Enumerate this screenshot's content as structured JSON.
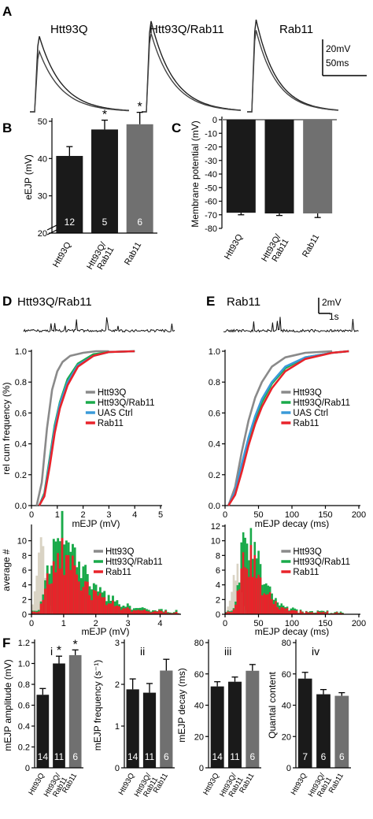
{
  "panel_labels": {
    "a": "A",
    "b": "B",
    "c": "C",
    "d": "D",
    "e": "E",
    "f": "F"
  },
  "scalebars": {
    "voltage": "20mV",
    "time": "50ms",
    "trace_voltage": "2mV",
    "trace_time": "1s"
  },
  "colors": {
    "htt93q": "#8a8a8a",
    "htt93q_rab11": "#1aaa4a",
    "uas_ctrl": "#3a9ad9",
    "rab11": "#e8232a",
    "bar_dark": "#1a1a1a",
    "bar_gray": "#707070",
    "hist_light": "#d9d3c4"
  },
  "chart_data": [
    {
      "id": "A",
      "type": "line",
      "title": "Htt93Q",
      "note": "evoked EJP traces",
      "series_count": 2
    },
    {
      "id": "A2",
      "type": "line",
      "title": "Htt93Q/Rab11",
      "series_count": 2
    },
    {
      "id": "A3",
      "type": "line",
      "title": "Rab11",
      "series_count": 2
    },
    {
      "id": "B",
      "type": "bar",
      "ylabel": "eEJP (mV)",
      "categories": [
        "Htt93Q",
        "Htt93Q/Rab11",
        "Rab11"
      ],
      "values": [
        40.7,
        47.8,
        49.2
      ],
      "errors": [
        2.5,
        2.5,
        3.2
      ],
      "n": [
        "12",
        "5",
        "6"
      ],
      "sig": [
        "",
        "*",
        "*"
      ],
      "ylim": [
        20,
        50
      ],
      "yticks": [
        "20",
        "30",
        "40",
        "50"
      ],
      "axis_break": true
    },
    {
      "id": "C",
      "type": "bar",
      "ylabel": "Membrane potential (mV)",
      "categories": [
        "Htt93Q",
        "Htt93Q/Rab11",
        "Rab11"
      ],
      "values": [
        -68.5,
        -69,
        -69
      ],
      "errors": [
        1.5,
        1.5,
        3
      ],
      "ylim": [
        -80,
        0
      ],
      "yticks": [
        "0",
        "-10",
        "-20",
        "-30",
        "-40",
        "-50",
        "-60",
        "-70",
        "-80"
      ]
    },
    {
      "id": "D_cdf",
      "type": "line",
      "title": "Htt93Q/Rab11",
      "xlabel": "mEJP  (mV)",
      "ylabel": "rel cum frequency (%)",
      "xlim": [
        0,
        5
      ],
      "ylim": [
        0,
        1
      ],
      "xticks": [
        "0",
        "1",
        "2",
        "3",
        "4",
        "5"
      ],
      "yticks": [
        "0.0",
        "0.2",
        "0.4",
        "0.6",
        "0.8",
        "1.0"
      ],
      "legend": [
        "Htt93Q",
        "Htt93Q/Rab11",
        "UAS Ctrl",
        "Rab11"
      ],
      "series": [
        {
          "name": "Htt93Q",
          "x": [
            0.2,
            0.4,
            0.6,
            0.8,
            1.0,
            1.2,
            1.5,
            2.0,
            2.5,
            3.0
          ],
          "y": [
            0.0,
            0.15,
            0.5,
            0.75,
            0.87,
            0.93,
            0.97,
            0.99,
            1.0,
            1.0
          ]
        },
        {
          "name": "Htt93Q/Rab11",
          "x": [
            0.3,
            0.5,
            0.7,
            0.9,
            1.1,
            1.4,
            1.8,
            2.4,
            3.0,
            4.0
          ],
          "y": [
            0.0,
            0.08,
            0.3,
            0.52,
            0.67,
            0.82,
            0.92,
            0.98,
            0.995,
            1.0
          ]
        },
        {
          "name": "UAS Ctrl",
          "x": [
            0.3,
            0.5,
            0.7,
            0.9,
            1.1,
            1.4,
            1.8,
            2.4,
            3.0,
            4.0
          ],
          "y": [
            0.0,
            0.07,
            0.28,
            0.5,
            0.66,
            0.8,
            0.91,
            0.97,
            0.995,
            1.0
          ]
        },
        {
          "name": "Rab11",
          "x": [
            0.3,
            0.5,
            0.7,
            0.9,
            1.1,
            1.4,
            1.8,
            2.4,
            3.0,
            4.0
          ],
          "y": [
            0.0,
            0.06,
            0.25,
            0.47,
            0.63,
            0.78,
            0.9,
            0.97,
            0.995,
            1.0
          ]
        }
      ]
    },
    {
      "id": "E_cdf",
      "type": "line",
      "title": "Rab11",
      "xlabel": "mEJP decay (ms)",
      "xlim": [
        0,
        200
      ],
      "ylim": [
        0,
        1
      ],
      "xticks": [
        "0",
        "50",
        "100",
        "150",
        "200"
      ],
      "yticks": [
        "0.0",
        "0.2",
        "0.4",
        "0.6",
        "0.8",
        "1.0"
      ],
      "legend": [
        "Htt93Q",
        "Htt93Q/Rab11",
        "UAS Ctrl",
        "Rab11"
      ],
      "series": [
        {
          "name": "Htt93Q",
          "x": [
            5,
            15,
            25,
            35,
            45,
            55,
            70,
            90,
            120,
            160
          ],
          "y": [
            0.0,
            0.12,
            0.35,
            0.55,
            0.7,
            0.8,
            0.9,
            0.96,
            0.99,
            1.0
          ]
        },
        {
          "name": "Htt93Q/Rab11",
          "x": [
            5,
            15,
            25,
            35,
            45,
            55,
            70,
            90,
            120,
            160,
            185
          ],
          "y": [
            0.0,
            0.08,
            0.25,
            0.42,
            0.56,
            0.67,
            0.79,
            0.89,
            0.96,
            0.99,
            1.0
          ]
        },
        {
          "name": "UAS Ctrl",
          "x": [
            5,
            15,
            25,
            35,
            45,
            55,
            70,
            90,
            120,
            160,
            185
          ],
          "y": [
            0.0,
            0.09,
            0.27,
            0.44,
            0.58,
            0.69,
            0.8,
            0.9,
            0.96,
            0.99,
            1.0
          ]
        },
        {
          "name": "Rab11",
          "x": [
            5,
            15,
            25,
            35,
            45,
            55,
            70,
            90,
            120,
            160,
            185
          ],
          "y": [
            0.0,
            0.07,
            0.22,
            0.39,
            0.53,
            0.64,
            0.76,
            0.87,
            0.95,
            0.99,
            1.0
          ]
        }
      ]
    },
    {
      "id": "D_hist",
      "type": "bar",
      "xlabel": "mEJP  (mV)",
      "ylabel": "average #",
      "xlim": [
        0,
        4.6
      ],
      "ylim": [
        0,
        12
      ],
      "xticks": [
        "0",
        "1",
        "2",
        "3",
        "4"
      ],
      "yticks": [
        "0",
        "2",
        "4",
        "6",
        "8",
        "10"
      ],
      "legend": [
        "Htt93Q",
        "Htt93Q/Rab11",
        "Rab11"
      ]
    },
    {
      "id": "E_hist",
      "type": "bar",
      "xlabel": "mEJP decay (ms)",
      "xlim": [
        0,
        200
      ],
      "ylim": [
        0,
        12
      ],
      "xticks": [
        "0",
        "50",
        "100",
        "150",
        "200"
      ],
      "yticks": [
        "0",
        "2",
        "4",
        "6",
        "8",
        "10",
        "12"
      ],
      "legend": [
        "Htt93Q",
        "Htt93Q/Rab11",
        "Rab11"
      ]
    },
    {
      "id": "Fi",
      "type": "bar",
      "roman": "i",
      "ylabel": "mEJP amplitude (mV)",
      "categories": [
        "Htt93Q",
        "Htt93Q/Rab11",
        "Rab11"
      ],
      "values": [
        0.7,
        1.0,
        1.08
      ],
      "errors": [
        0.06,
        0.07,
        0.05
      ],
      "n": [
        "14",
        "11",
        "6"
      ],
      "sig": [
        "",
        "*",
        "*"
      ],
      "ylim": [
        0,
        1.2
      ],
      "yticks": [
        "0",
        "0.2",
        "0.4",
        "0.6",
        "0.8",
        "1.0",
        "1.2"
      ]
    },
    {
      "id": "Fii",
      "type": "bar",
      "roman": "ii",
      "ylabel": "mEJP frequency (s⁻¹)",
      "categories": [
        "Htt93Q",
        "Htt93Q/Rab11",
        "Rab11"
      ],
      "values": [
        1.88,
        1.8,
        2.33
      ],
      "errors": [
        0.25,
        0.22,
        0.27
      ],
      "n": [
        "14",
        "11",
        "6"
      ],
      "sig": [
        "",
        "",
        ""
      ],
      "ylim": [
        0,
        3
      ],
      "yticks": [
        "0",
        "1",
        "2",
        "3"
      ]
    },
    {
      "id": "Fiii",
      "type": "bar",
      "roman": "iii",
      "ylabel": "mEJP decay (ms)",
      "categories": [
        "Htt93Q",
        "Htt93Q/Rab11",
        "Rab11"
      ],
      "values": [
        52,
        55,
        62
      ],
      "errors": [
        3,
        3,
        4
      ],
      "n": [
        "14",
        "11",
        "6"
      ],
      "sig": [
        "",
        "",
        ""
      ],
      "ylim": [
        0,
        80
      ],
      "yticks": [
        "0",
        "20",
        "40",
        "60",
        "80"
      ]
    },
    {
      "id": "Fiv",
      "type": "bar",
      "roman": "iv",
      "ylabel": "Quantal content",
      "categories": [
        "Htt93Q",
        "Htt93Q/Rab11",
        "Rab11"
      ],
      "values": [
        57,
        47,
        46
      ],
      "errors": [
        4,
        3,
        2
      ],
      "n": [
        "7",
        "6",
        "6"
      ],
      "sig": [
        "",
        "",
        ""
      ],
      "ylim": [
        0,
        80
      ],
      "yticks": [
        "0",
        "20",
        "40",
        "60",
        "80"
      ]
    }
  ]
}
